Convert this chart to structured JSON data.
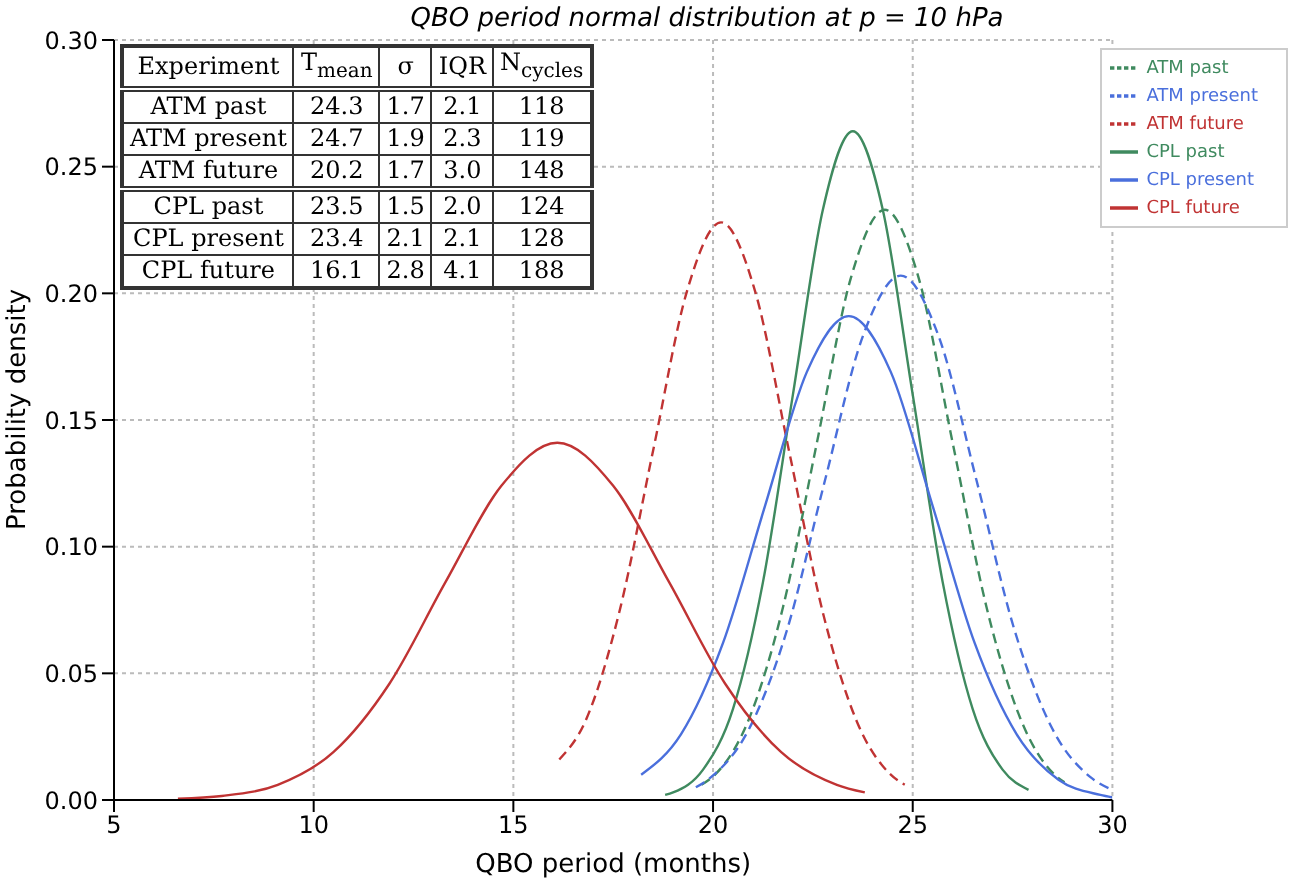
{
  "chart_data": {
    "type": "line",
    "title": "QBO period normal distribution at p = 10 hPa",
    "xlabel": "QBO period (months)",
    "ylabel": "Probability density",
    "xlim": [
      5,
      30
    ],
    "xticks": [
      5,
      10,
      15,
      20,
      25,
      30
    ],
    "ylim": [
      0,
      0.3
    ],
    "yticks": [
      {
        "value": 0,
        "label": "0.00"
      },
      0.05,
      {
        "value": 0.1,
        "label": "0.10"
      },
      0.15,
      {
        "value": 0.2,
        "label": "0.20"
      },
      0.25,
      {
        "value": 0.3,
        "label": "0.30"
      }
    ],
    "grid": true,
    "legend": "top right",
    "series": [
      {
        "name": "ATM past",
        "color": "#3f8a5f",
        "line_style": "dashed",
        "x": [
          19.71,
          20.05,
          20.9,
          21.75,
          22.6,
          23.45,
          24.3,
          25.15,
          26.0,
          26.85,
          27.7,
          28.55,
          28.8
        ],
        "values": [
          0.006,
          0.01,
          0.032,
          0.076,
          0.141,
          0.206,
          0.233,
          0.206,
          0.141,
          0.076,
          0.032,
          0.01,
          0.007
        ]
      },
      {
        "name": "ATM present",
        "color": "#4a6fdc",
        "line_style": "dashed",
        "x": [
          19.57,
          19.95,
          20.9,
          21.85,
          22.8,
          23.75,
          24.7,
          25.65,
          26.6,
          27.55,
          28.5,
          29.45,
          30
        ],
        "values": [
          0.005,
          0.009,
          0.028,
          0.067,
          0.126,
          0.183,
          0.207,
          0.183,
          0.126,
          0.067,
          0.028,
          0.009,
          0.004
        ]
      },
      {
        "name": "ATM future",
        "color": "#c03333",
        "line_style": "dashed",
        "x": [
          16.15,
          16.8,
          17.65,
          18.5,
          19.35,
          20.2,
          21.05,
          21.9,
          22.75,
          23.6,
          24.45,
          24.8
        ],
        "values": [
          0.016,
          0.031,
          0.074,
          0.138,
          0.201,
          0.228,
          0.201,
          0.138,
          0.074,
          0.031,
          0.01,
          0.006
        ]
      },
      {
        "name": "CPL past",
        "color": "#3f8a5f",
        "line_style": "solid",
        "x": [
          18.8,
          19.0,
          19.75,
          20.5,
          21.25,
          22.0,
          22.75,
          23.5,
          24.25,
          25.0,
          25.75,
          26.5,
          27.25,
          27.9
        ],
        "values": [
          0.002,
          0.003,
          0.012,
          0.036,
          0.086,
          0.16,
          0.233,
          0.264,
          0.233,
          0.16,
          0.086,
          0.036,
          0.012,
          0.004
        ]
      },
      {
        "name": "CPL present",
        "color": "#4a6fdc",
        "line_style": "solid",
        "x": [
          18.2,
          19.2,
          20.25,
          21.3,
          22.35,
          23.4,
          24.45,
          25.5,
          26.55,
          27.6,
          28.65,
          29.7,
          30
        ],
        "values": [
          0.01,
          0.026,
          0.062,
          0.116,
          0.169,
          0.191,
          0.169,
          0.116,
          0.062,
          0.026,
          0.008,
          0.002,
          0.001
        ]
      },
      {
        "name": "CPL future",
        "color": "#c03333",
        "line_style": "solid",
        "x": [
          6.6,
          7.7,
          9.1,
          10.5,
          11.9,
          13.3,
          14.7,
          16.1,
          17.5,
          18.9,
          20.3,
          21.7,
          23.1,
          23.8
        ],
        "values": [
          0.0005,
          0.0016,
          0.006,
          0.019,
          0.046,
          0.086,
          0.124,
          0.141,
          0.124,
          0.086,
          0.046,
          0.019,
          0.006,
          0.003
        ]
      }
    ],
    "annotations": [
      "Experiment",
      "T$_{mean}$",
      "σ",
      "IQR",
      "N$_{cycles}$",
      "ATM past",
      "24.3",
      "1.7",
      "2.1",
      "118",
      "ATM present",
      "24.7",
      "1.9",
      "2.3",
      "119",
      "ATM future",
      "20.2",
      "1.7",
      "3.0",
      "148",
      "CPL past",
      "23.5",
      "1.5",
      "2.0",
      "124",
      "CPL present",
      "23.4",
      "2.1",
      "2.1",
      "128",
      "CPL future",
      "16.1",
      "2.8",
      "4.1",
      "188"
    ]
  }
}
